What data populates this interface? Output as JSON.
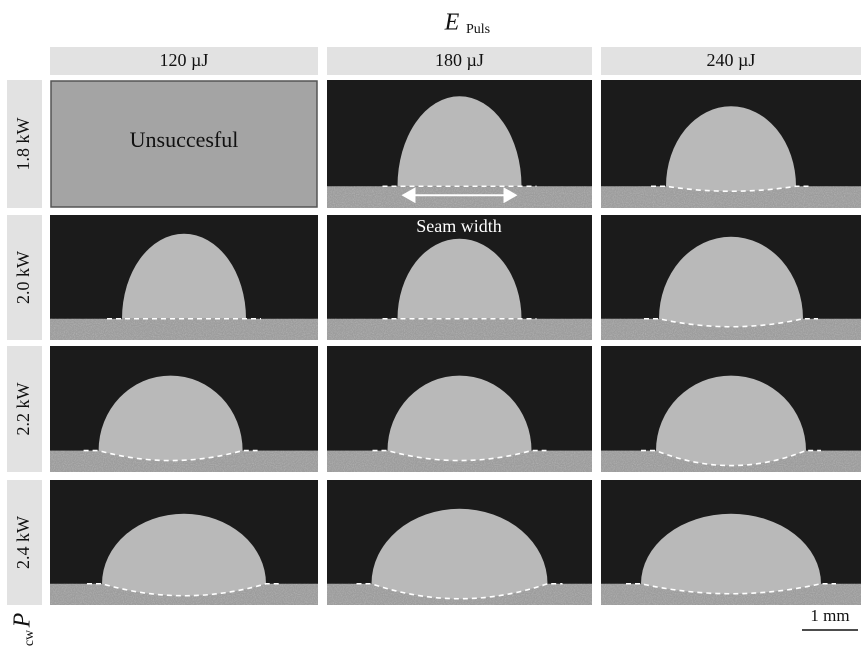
{
  "header": {
    "symbol": "E",
    "subscript": "Puls"
  },
  "columns": [
    "120 µJ",
    "180 µJ",
    "240 µJ"
  ],
  "row_axis": {
    "symbol": "P",
    "subscript": "cw"
  },
  "rows": [
    "1.8 kW",
    "2.0 kW",
    "2.2 kW",
    "2.4 kW"
  ],
  "failed_label": "Unsuccesful",
  "annotation": "Seam width",
  "scale_bar": "1 mm"
}
